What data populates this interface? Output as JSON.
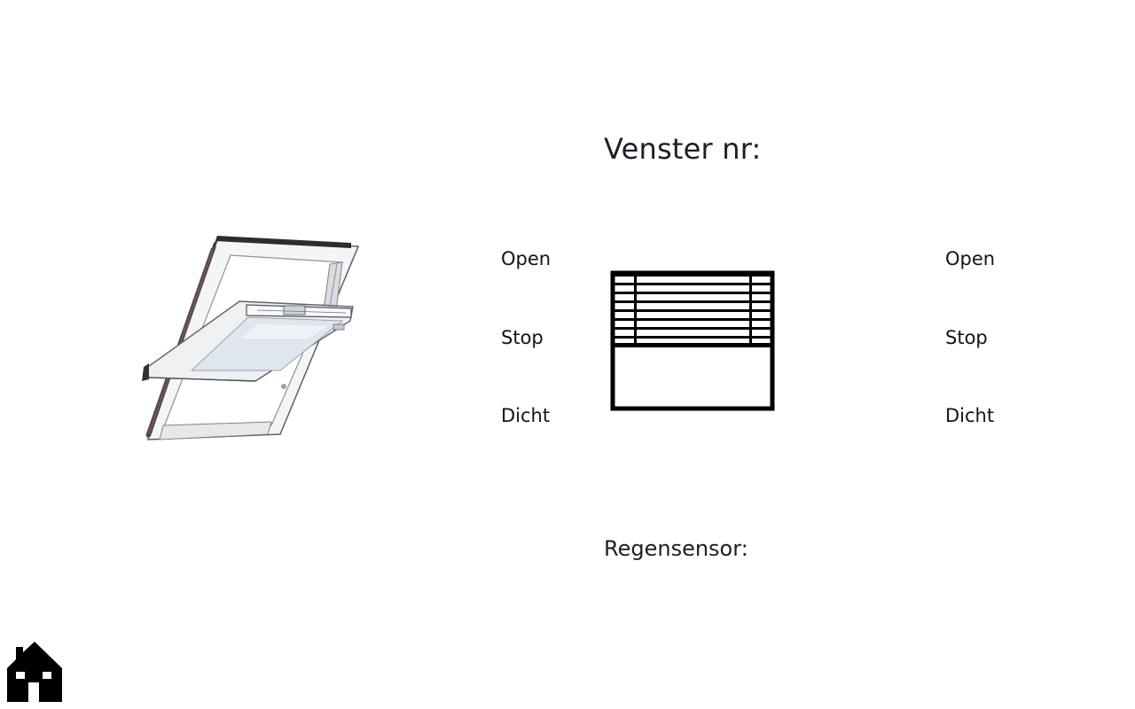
{
  "header": {
    "title": "Venster nr:"
  },
  "window_controls": {
    "open_label": "Open",
    "stop_label": "Stop",
    "close_label": "Dicht"
  },
  "blind_controls": {
    "open_label": "Open",
    "stop_label": "Stop",
    "close_label": "Dicht"
  },
  "rain_sensor": {
    "label": "Regensensor:"
  },
  "icons": {
    "home": "home-icon",
    "roof_window": "roof-window-illustration",
    "blind": "venetian-blind-icon"
  }
}
